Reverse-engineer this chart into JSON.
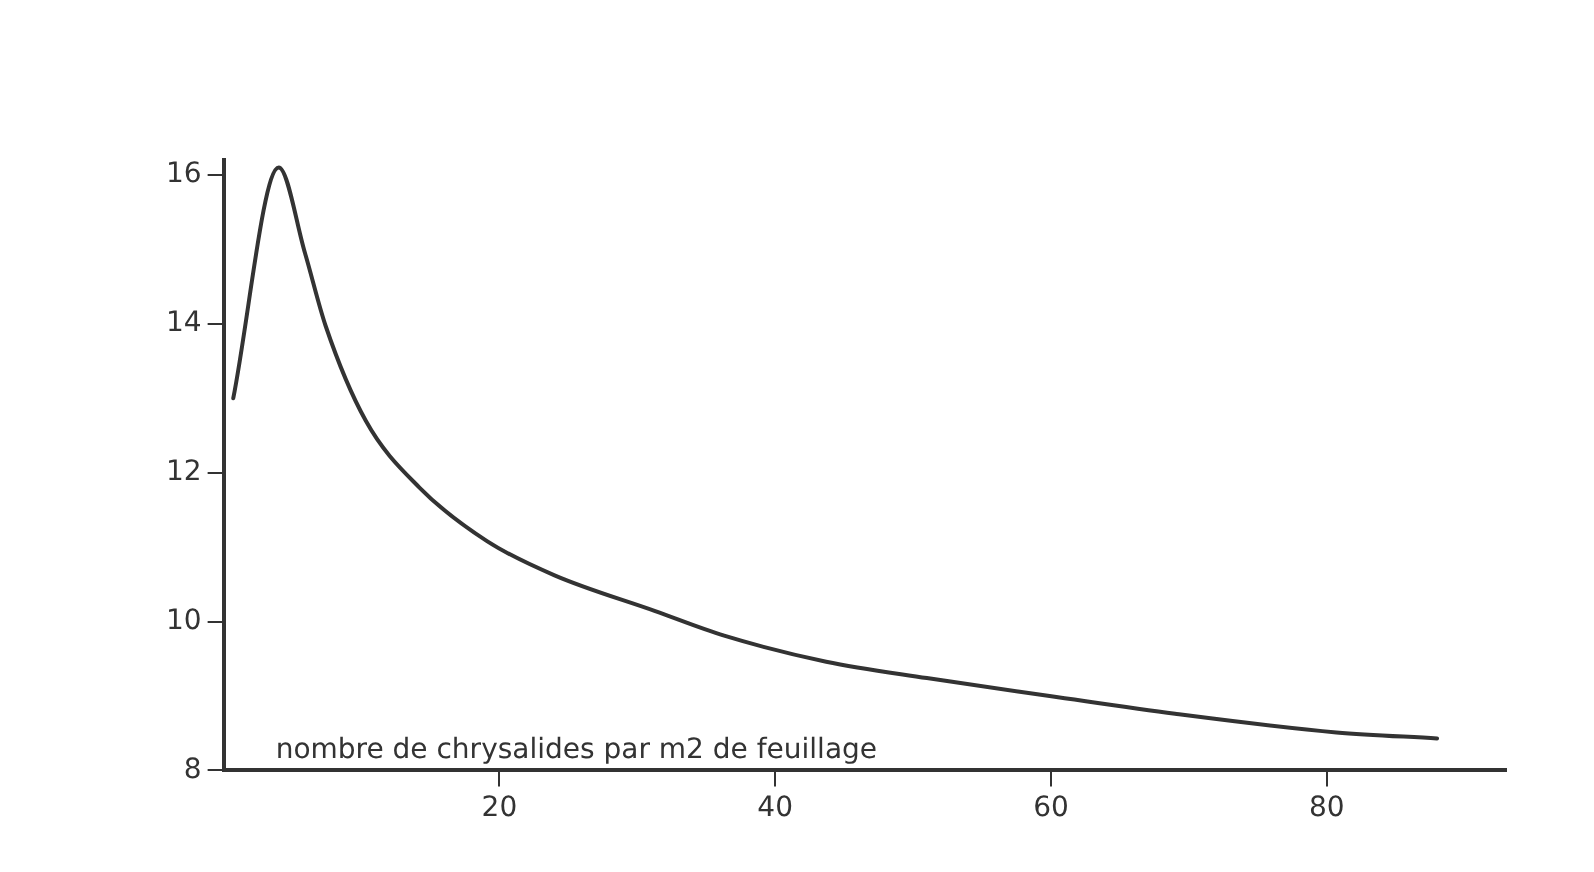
{
  "chart_data": {
    "type": "line",
    "xlabel": "nombre de chrysalides par m2 de feuillage",
    "x": [
      0.7,
      4,
      5.9,
      7.4,
      10.3,
      14.2,
      19.1,
      24.0,
      31.3,
      36.3,
      43.7,
      51.0,
      59.9,
      69.0,
      80.7,
      88.0
    ],
    "series": [
      {
        "color": "#333333",
        "values": [
          13.0,
          16.1,
          14.95,
          13.97,
          12.7,
          11.8,
          11.08,
          10.62,
          10.14,
          9.81,
          9.46,
          9.24,
          9.0,
          8.76,
          8.51,
          8.43
        ]
      }
    ],
    "xlim": [
      0,
      93
    ],
    "xticks": [
      20,
      40,
      60,
      80
    ],
    "ylim": [
      8,
      16.2
    ],
    "yticks": [
      8,
      10,
      12,
      14,
      16
    ],
    "grid": false,
    "legend": false,
    "marker": "none",
    "line_style": "solid"
  }
}
